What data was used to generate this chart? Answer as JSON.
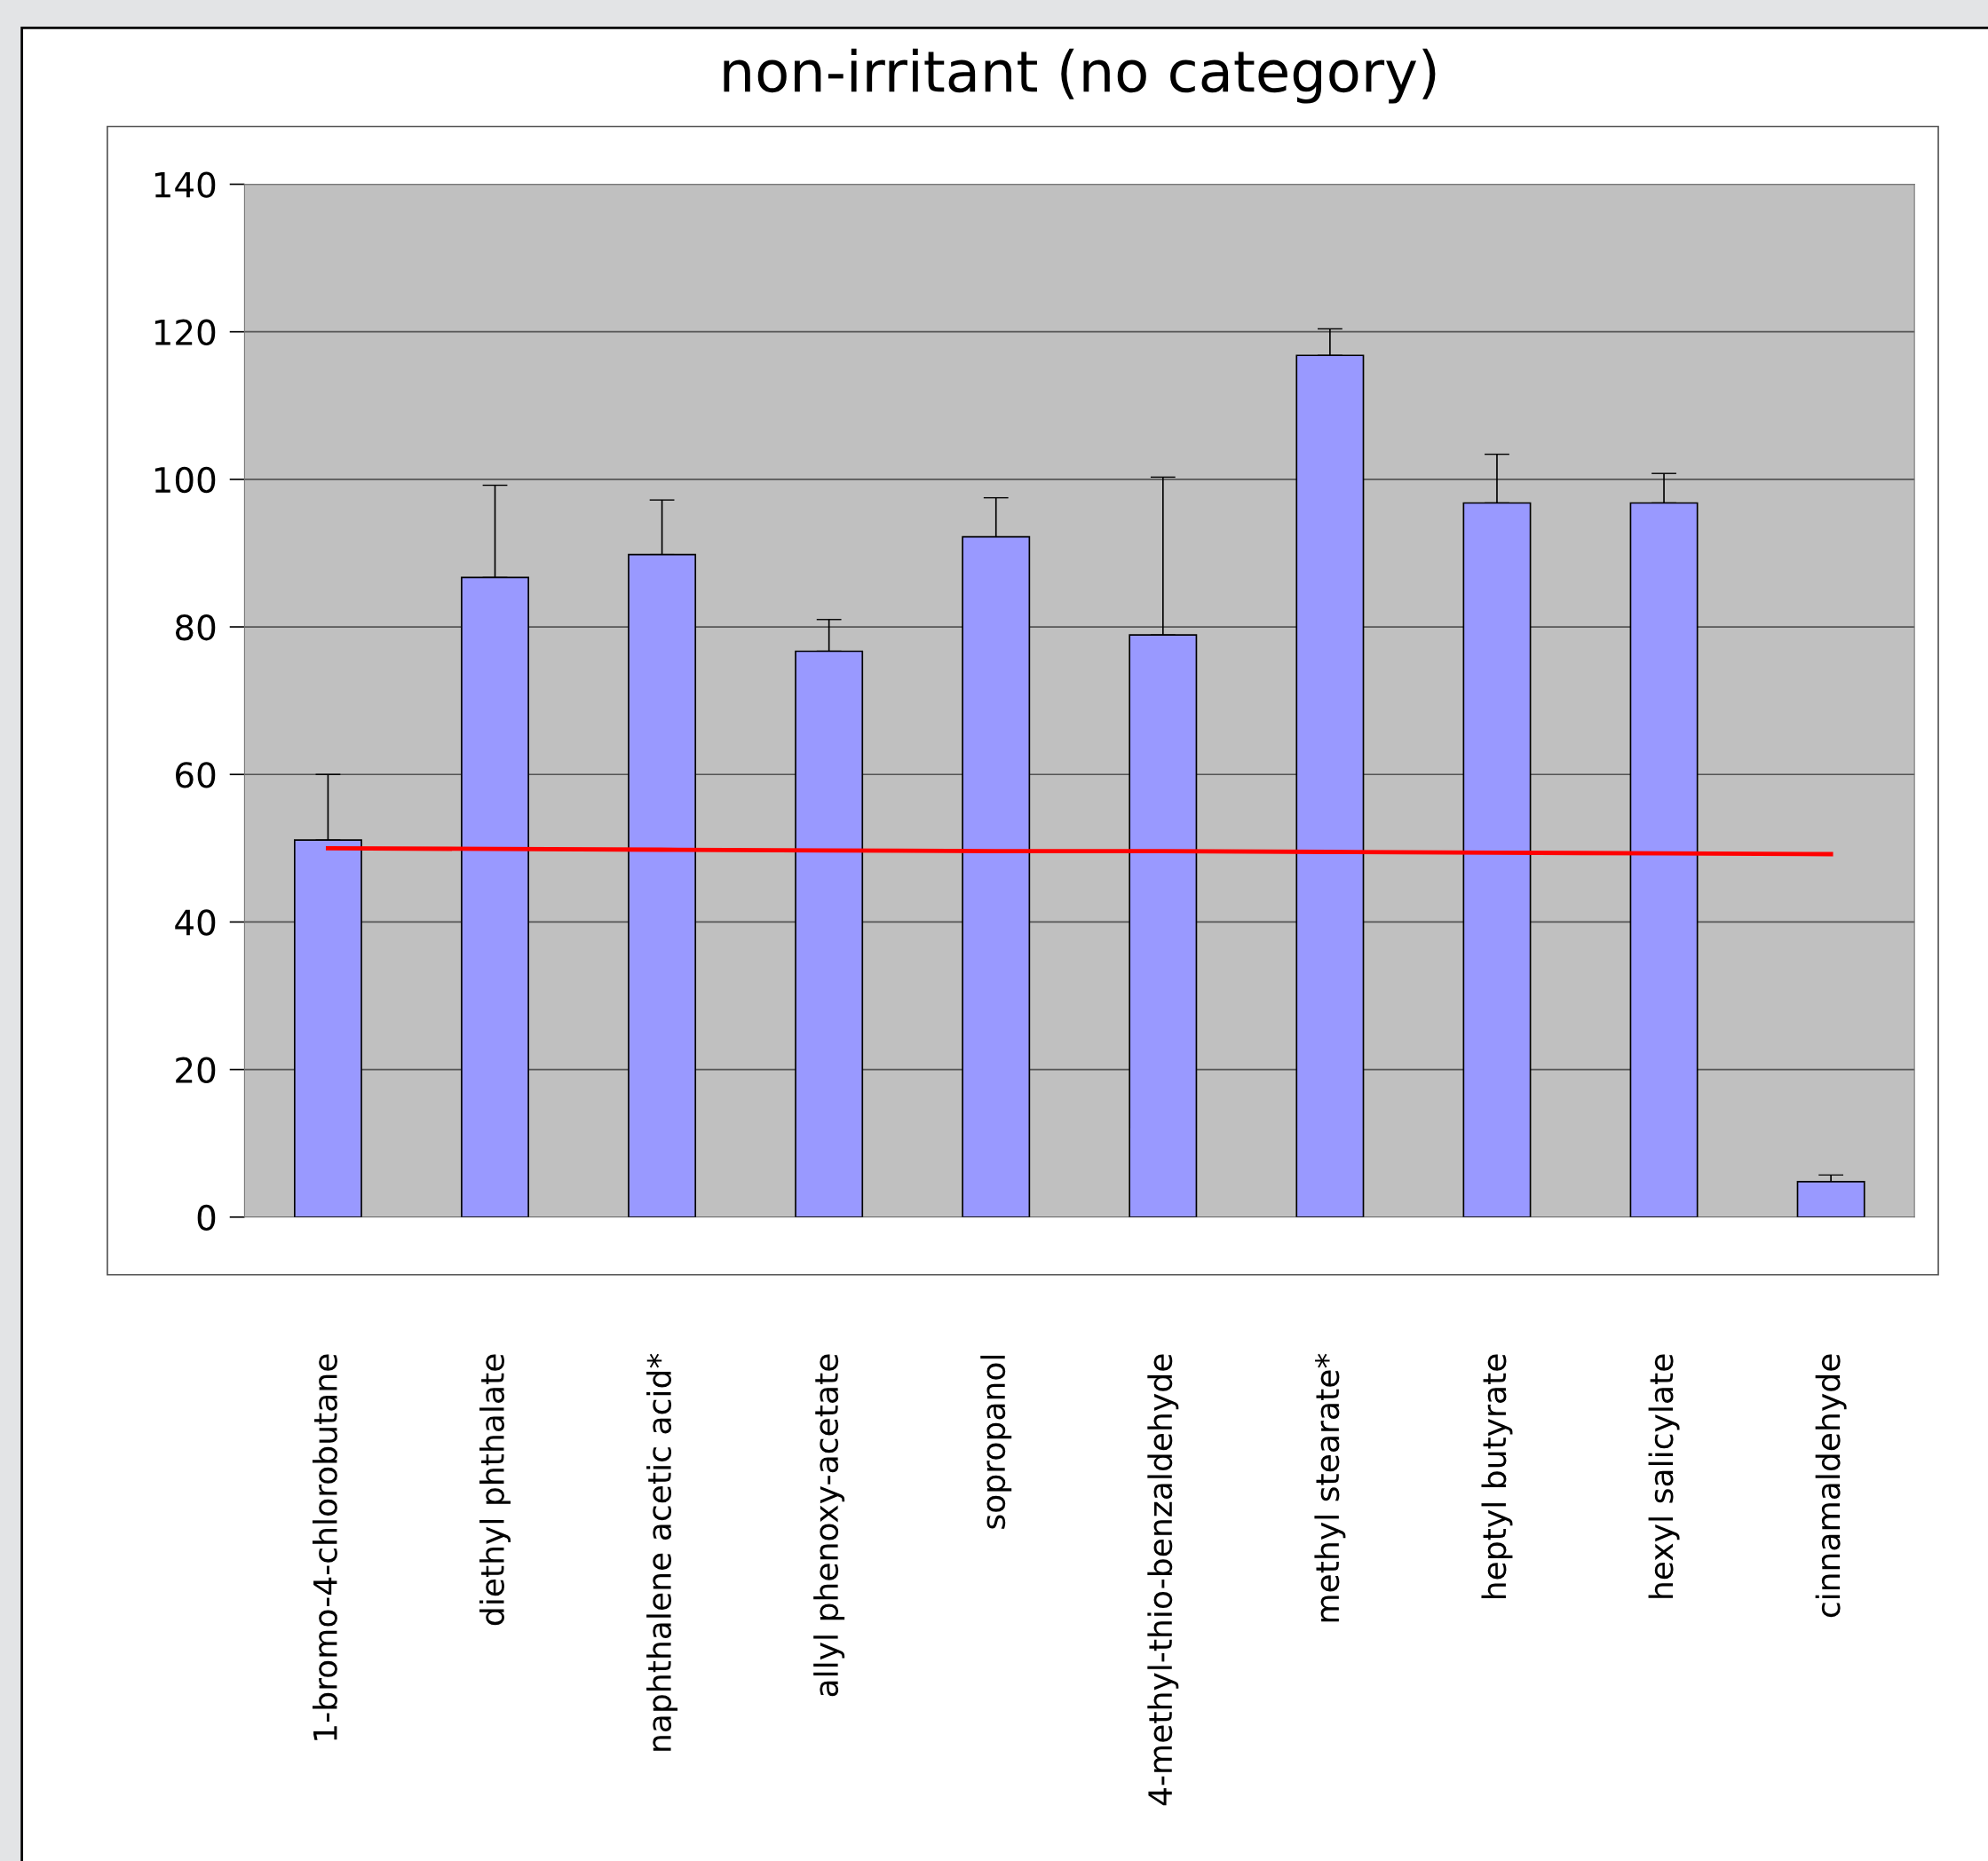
{
  "chart_data": {
    "type": "bar",
    "title": "non-irritant (no category)",
    "categories": [
      "1-bromo-4-chlorobutane",
      "diethyl phthalate",
      "naphthalene acetic acid*",
      "allyl phenoxy-acetate",
      "sopropanol",
      "4-methyl-thio-benzaldehyde",
      "methyl stearate*",
      "heptyl butyrate",
      "hexyl salicylate",
      "cinnamaldehyde"
    ],
    "series": [
      {
        "color": "#9999ff",
        "values": [
          51.1,
          86.7,
          89.8,
          76.7,
          92.2,
          78.9,
          116.8,
          96.8,
          96.8,
          4.8
        ],
        "errors": [
          [
            51.1,
            60.0
          ],
          [
            86.7,
            99.2
          ],
          [
            89.8,
            97.2
          ],
          [
            76.7,
            81.0
          ],
          [
            92.2,
            97.5
          ],
          [
            78.9,
            100.3
          ],
          [
            116.8,
            120.4
          ],
          [
            96.8,
            103.4
          ],
          [
            96.8,
            100.8
          ],
          [
            4.8,
            5.7
          ]
        ]
      },
      {
        "type": "line",
        "color": "#ff0000",
        "values": [
          50.0,
          49.9,
          49.8,
          49.7,
          49.6,
          49.6,
          49.5,
          49.4,
          49.3,
          49.2
        ]
      }
    ],
    "ylim": [
      0,
      140
    ],
    "yticks": [
      0,
      20,
      40,
      60,
      80,
      100,
      120,
      140
    ],
    "grid": "y",
    "legend": false
  }
}
